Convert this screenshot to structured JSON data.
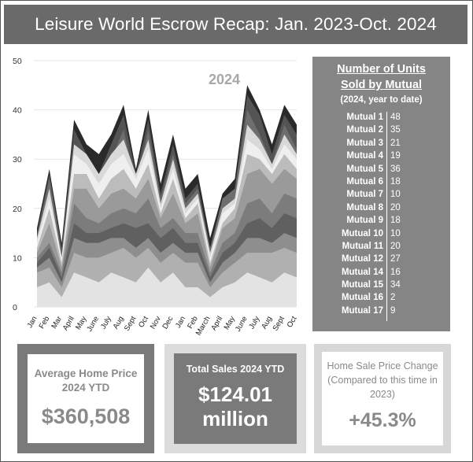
{
  "title": "Leisure World Escrow Recap: Jan. 2023-Oct. 2024",
  "chart_data": {
    "type": "area",
    "stacked": false,
    "annotation": "2024",
    "ylim": [
      0,
      50
    ],
    "yticks": [
      0,
      10,
      20,
      30,
      40,
      50
    ],
    "categories": [
      "Jan",
      "Feb",
      "Mar",
      "April",
      "May",
      "June",
      "July",
      "Aug",
      "Sept",
      "Oct",
      "Nov",
      "Dec",
      "Jan",
      "Feb",
      "March",
      "April",
      "May",
      "June",
      "July",
      "Aug",
      "Sept",
      "Oct"
    ],
    "series": [
      {
        "color": "#2a2a2a",
        "values": [
          16,
          28,
          13,
          38,
          33,
          31,
          35,
          41,
          28,
          40,
          25,
          35,
          24,
          27,
          14,
          23,
          26,
          45,
          40,
          33,
          41,
          37
        ]
      },
      {
        "color": "#545454",
        "values": [
          15,
          27,
          12,
          36,
          31,
          27,
          33,
          39,
          27,
          38,
          23,
          33,
          22,
          25,
          12,
          21,
          24,
          43,
          39,
          31,
          39,
          35
        ]
      },
      {
        "color": "#6e6e6e",
        "values": [
          14,
          26,
          11,
          33,
          30,
          25,
          30,
          36,
          25,
          36,
          22,
          31,
          21,
          24,
          12,
          22,
          24,
          40,
          35,
          29,
          37,
          32
        ]
      },
      {
        "color": "#d9d9d9",
        "values": [
          14,
          24,
          10,
          33,
          31,
          27,
          31,
          34,
          27,
          34,
          21,
          30,
          20,
          23,
          11,
          20,
          22,
          37,
          34,
          29,
          35,
          31
        ]
      },
      {
        "color": "#efefef",
        "values": [
          13,
          22,
          10,
          31,
          29,
          25,
          29,
          31,
          26,
          32,
          20,
          28,
          19,
          22,
          10,
          19,
          21,
          34,
          32,
          28,
          33,
          30
        ]
      },
      {
        "color": "#bcbcbc",
        "values": [
          12,
          20,
          9,
          27,
          27,
          22,
          26,
          28,
          24,
          29,
          19,
          26,
          18,
          21,
          9,
          17,
          20,
          31,
          30,
          27,
          31,
          28
        ]
      },
      {
        "color": "#9a9a9a",
        "values": [
          11,
          17,
          8,
          24,
          24,
          20,
          23,
          24,
          22,
          26,
          18,
          23,
          17,
          19,
          8,
          16,
          18,
          27,
          28,
          25,
          28,
          26
        ]
      },
      {
        "color": "#7c7c7c",
        "values": [
          10,
          13,
          7,
          21,
          18,
          17,
          19,
          20,
          19,
          22,
          16,
          18,
          15,
          15,
          7,
          13,
          15,
          21,
          22,
          19,
          23,
          22
        ]
      },
      {
        "color": "#606060",
        "values": [
          9,
          12,
          6,
          17,
          15,
          15,
          16,
          17,
          16,
          17,
          14,
          16,
          13,
          13,
          6,
          11,
          13,
          17,
          18,
          16,
          19,
          18
        ]
      },
      {
        "color": "#8e8e8e",
        "values": [
          8,
          10,
          5,
          14,
          13,
          13,
          14,
          14,
          12,
          14,
          11,
          13,
          11,
          11,
          5,
          9,
          11,
          14,
          14,
          13,
          15,
          14
        ]
      },
      {
        "color": "#b0b0b0",
        "values": [
          7,
          8,
          4,
          11,
          10,
          10,
          11,
          12,
          10,
          12,
          9,
          11,
          9,
          9,
          4,
          7,
          9,
          11,
          11,
          11,
          12,
          11
        ]
      },
      {
        "color": "#e3e3e3",
        "values": [
          4,
          5,
          2,
          7,
          6,
          5,
          7,
          6,
          5,
          8,
          5,
          7,
          4,
          4,
          2,
          4,
          5,
          7,
          6,
          5,
          7,
          6
        ]
      }
    ]
  },
  "units_panel": {
    "title_line1": "Number of Units",
    "title_line2": "Sold by Mutual",
    "subtitle": "(2024, year to date)",
    "rows": [
      {
        "name": "Mutual 1",
        "value": "48"
      },
      {
        "name": "Mutual 2",
        "value": "35"
      },
      {
        "name": "Mutual 3",
        "value": "21"
      },
      {
        "name": "Mutual 4",
        "value": "19"
      },
      {
        "name": "Mutual 5",
        "value": "36"
      },
      {
        "name": "Mutual 6",
        "value": "18"
      },
      {
        "name": "Mutual 7",
        "value": "10"
      },
      {
        "name": "Mutual 8",
        "value": "20"
      },
      {
        "name": "Mutual 9",
        "value": "18"
      },
      {
        "name": "Mutual 10",
        "value": "10"
      },
      {
        "name": "Mutual 11",
        "value": "20"
      },
      {
        "name": "Mutual 12",
        "value": "27"
      },
      {
        "name": "Mutual 14",
        "value": "16"
      },
      {
        "name": "Mutual 15",
        "value": "34"
      },
      {
        "name": "Mutual 16",
        "value": "2"
      },
      {
        "name": "Mutual 17",
        "value": "9"
      }
    ]
  },
  "stats": {
    "avg_price_label": "Average Home Price 2024 YTD",
    "avg_price_value": "$360,508",
    "total_sales_label": "Total Sales 2024 YTD",
    "total_sales_value_line1": "$124.01",
    "total_sales_value_line2": "million",
    "price_change_label": "Home Sale Price Change (Compared to this time in 2023)",
    "price_change_value": "+45.3%"
  }
}
